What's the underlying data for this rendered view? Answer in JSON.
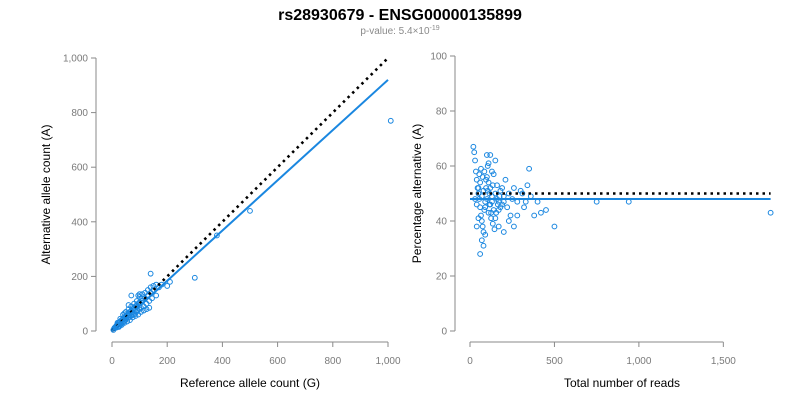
{
  "figure": {
    "title": "rs28930679 - ENSG00000135899",
    "subtitle_prefix": "p-value: 5.4×10",
    "subtitle_exponent": "-19"
  },
  "colors": {
    "points": "#1a87e0",
    "fit": "#1a87e0",
    "reference": "#000000"
  },
  "chart_data": [
    {
      "type": "scatter",
      "xlabel": "Reference allele count (G)",
      "ylabel": "Alternative allele count (A)",
      "xlim": [
        0,
        1000
      ],
      "ylim": [
        0,
        1000
      ],
      "xticks": [
        0,
        200,
        400,
        600,
        800,
        1000
      ],
      "xtick_labels": [
        "0",
        "200",
        "400",
        "600",
        "800",
        "1,000"
      ],
      "yticks": [
        0,
        200,
        400,
        600,
        800,
        1000
      ],
      "ytick_labels": [
        "0",
        "200",
        "400",
        "600",
        "800",
        "1,000"
      ],
      "grid": false,
      "fit_line": {
        "x": [
          0,
          1000
        ],
        "y": [
          0,
          920
        ]
      },
      "reference_line": {
        "x": [
          0,
          1000
        ],
        "y": [
          0,
          1000
        ]
      },
      "points": [
        [
          5,
          4
        ],
        [
          8,
          10
        ],
        [
          10,
          12
        ],
        [
          12,
          14
        ],
        [
          15,
          18
        ],
        [
          18,
          20
        ],
        [
          20,
          22
        ],
        [
          22,
          15
        ],
        [
          25,
          28
        ],
        [
          28,
          20
        ],
        [
          30,
          35
        ],
        [
          32,
          25
        ],
        [
          35,
          40
        ],
        [
          38,
          30
        ],
        [
          40,
          45
        ],
        [
          42,
          35
        ],
        [
          45,
          50
        ],
        [
          48,
          40
        ],
        [
          50,
          55
        ],
        [
          52,
          45
        ],
        [
          55,
          60
        ],
        [
          58,
          48
        ],
        [
          60,
          65
        ],
        [
          62,
          50
        ],
        [
          65,
          70
        ],
        [
          68,
          55
        ],
        [
          70,
          75
        ],
        [
          72,
          58
        ],
        [
          75,
          80
        ],
        [
          78,
          60
        ],
        [
          80,
          85
        ],
        [
          82,
          62
        ],
        [
          85,
          90
        ],
        [
          88,
          70
        ],
        [
          90,
          95
        ],
        [
          92,
          75
        ],
        [
          95,
          100
        ],
        [
          98,
          80
        ],
        [
          100,
          105
        ],
        [
          105,
          85
        ],
        [
          110,
          110
        ],
        [
          115,
          90
        ],
        [
          120,
          120
        ],
        [
          125,
          100
        ],
        [
          130,
          130
        ],
        [
          135,
          110
        ],
        [
          140,
          140
        ],
        [
          145,
          120
        ],
        [
          150,
          150
        ],
        [
          160,
          130
        ],
        [
          170,
          160
        ],
        [
          180,
          170
        ],
        [
          30,
          45
        ],
        [
          40,
          60
        ],
        [
          50,
          70
        ],
        [
          60,
          80
        ],
        [
          70,
          90
        ],
        [
          80,
          100
        ],
        [
          90,
          110
        ],
        [
          100,
          125
        ],
        [
          110,
          135
        ],
        [
          120,
          140
        ],
        [
          130,
          150
        ],
        [
          140,
          160
        ],
        [
          150,
          165
        ],
        [
          45,
          30
        ],
        [
          55,
          35
        ],
        [
          65,
          40
        ],
        [
          75,
          50
        ],
        [
          85,
          55
        ],
        [
          95,
          60
        ],
        [
          105,
          70
        ],
        [
          115,
          75
        ],
        [
          125,
          80
        ],
        [
          135,
          85
        ],
        [
          25,
          15
        ],
        [
          35,
          22
        ],
        [
          20,
          30
        ],
        [
          45,
          65
        ],
        [
          60,
          95
        ],
        [
          70,
          130
        ],
        [
          95,
          130
        ],
        [
          100,
          135
        ],
        [
          110,
          120
        ],
        [
          140,
          210
        ],
        [
          160,
          170
        ],
        [
          200,
          165
        ],
        [
          210,
          180
        ],
        [
          300,
          195
        ],
        [
          380,
          350
        ],
        [
          500,
          440
        ],
        [
          1010,
          770
        ],
        [
          15,
          12
        ],
        [
          18,
          22
        ],
        [
          22,
          28
        ],
        [
          28,
          32
        ],
        [
          33,
          28
        ],
        [
          38,
          42
        ],
        [
          42,
          48
        ],
        [
          48,
          52
        ],
        [
          52,
          48
        ],
        [
          58,
          62
        ],
        [
          62,
          58
        ],
        [
          68,
          72
        ],
        [
          72,
          68
        ],
        [
          78,
          82
        ],
        [
          82,
          78
        ],
        [
          88,
          92
        ],
        [
          92,
          88
        ],
        [
          98,
          102
        ]
      ]
    },
    {
      "type": "scatter",
      "xlabel": "Total number of reads",
      "ylabel": "Percentage alternative (A)",
      "xlim": [
        0,
        1800
      ],
      "ylim": [
        0,
        100
      ],
      "xticks": [
        0,
        500,
        1000,
        1500
      ],
      "xtick_labels": [
        "0",
        "500",
        "1,000",
        "1,500"
      ],
      "yticks": [
        0,
        20,
        40,
        60,
        80,
        100
      ],
      "ytick_labels": [
        "0",
        "20",
        "40",
        "60",
        "80",
        "100"
      ],
      "grid": false,
      "fit_line": {
        "x": [
          0,
          1780
        ],
        "y": [
          48,
          48
        ]
      },
      "reference_line": {
        "x": [
          0,
          1780
        ],
        "y": [
          50,
          50
        ]
      },
      "points": [
        [
          20,
          67
        ],
        [
          25,
          65
        ],
        [
          30,
          62
        ],
        [
          35,
          58
        ],
        [
          40,
          55
        ],
        [
          45,
          52
        ],
        [
          50,
          50
        ],
        [
          55,
          48
        ],
        [
          60,
          45
        ],
        [
          65,
          42
        ],
        [
          70,
          40
        ],
        [
          75,
          38
        ],
        [
          80,
          36
        ],
        [
          85,
          44
        ],
        [
          90,
          47
        ],
        [
          95,
          52
        ],
        [
          100,
          56
        ],
        [
          105,
          60
        ],
        [
          110,
          54
        ],
        [
          115,
          50
        ],
        [
          120,
          46
        ],
        [
          125,
          43
        ],
        [
          130,
          49
        ],
        [
          135,
          53
        ],
        [
          140,
          57
        ],
        [
          150,
          62
        ],
        [
          160,
          48
        ],
        [
          170,
          44
        ],
        [
          180,
          51
        ],
        [
          190,
          46
        ],
        [
          200,
          49
        ],
        [
          210,
          55
        ],
        [
          220,
          45
        ],
        [
          230,
          50
        ],
        [
          240,
          42
        ],
        [
          250,
          48
        ],
        [
          260,
          52
        ],
        [
          280,
          47
        ],
        [
          300,
          51
        ],
        [
          320,
          45
        ],
        [
          340,
          53
        ],
        [
          360,
          49
        ],
        [
          380,
          42
        ],
        [
          400,
          47
        ],
        [
          420,
          43
        ],
        [
          450,
          44
        ],
        [
          500,
          38
        ],
        [
          750,
          47
        ],
        [
          940,
          47
        ],
        [
          1780,
          43
        ],
        [
          30,
          48
        ],
        [
          40,
          46
        ],
        [
          50,
          52
        ],
        [
          60,
          54
        ],
        [
          70,
          49
        ],
        [
          80,
          51
        ],
        [
          90,
          45
        ],
        [
          100,
          48
        ],
        [
          110,
          43
        ],
        [
          120,
          52
        ],
        [
          130,
          47
        ],
        [
          140,
          44
        ],
        [
          150,
          50
        ],
        [
          160,
          53
        ],
        [
          170,
          47
        ],
        [
          180,
          45
        ],
        [
          190,
          52
        ],
        [
          200,
          47
        ],
        [
          60,
          28
        ],
        [
          70,
          33
        ],
        [
          80,
          31
        ],
        [
          90,
          35
        ],
        [
          40,
          38
        ],
        [
          50,
          41
        ],
        [
          100,
          64
        ],
        [
          120,
          64
        ],
        [
          110,
          61
        ],
        [
          130,
          58
        ],
        [
          150,
          41
        ],
        [
          170,
          38
        ],
        [
          200,
          36
        ],
        [
          230,
          40
        ],
        [
          260,
          38
        ],
        [
          280,
          42
        ],
        [
          310,
          50
        ],
        [
          330,
          47
        ],
        [
          350,
          59
        ],
        [
          55,
          57
        ],
        [
          65,
          59
        ],
        [
          75,
          56
        ],
        [
          85,
          58
        ],
        [
          95,
          55
        ],
        [
          105,
          51
        ],
        [
          115,
          46
        ],
        [
          125,
          41
        ],
        [
          135,
          39
        ],
        [
          145,
          37
        ],
        [
          155,
          43
        ],
        [
          165,
          46
        ],
        [
          175,
          49
        ]
      ]
    }
  ]
}
